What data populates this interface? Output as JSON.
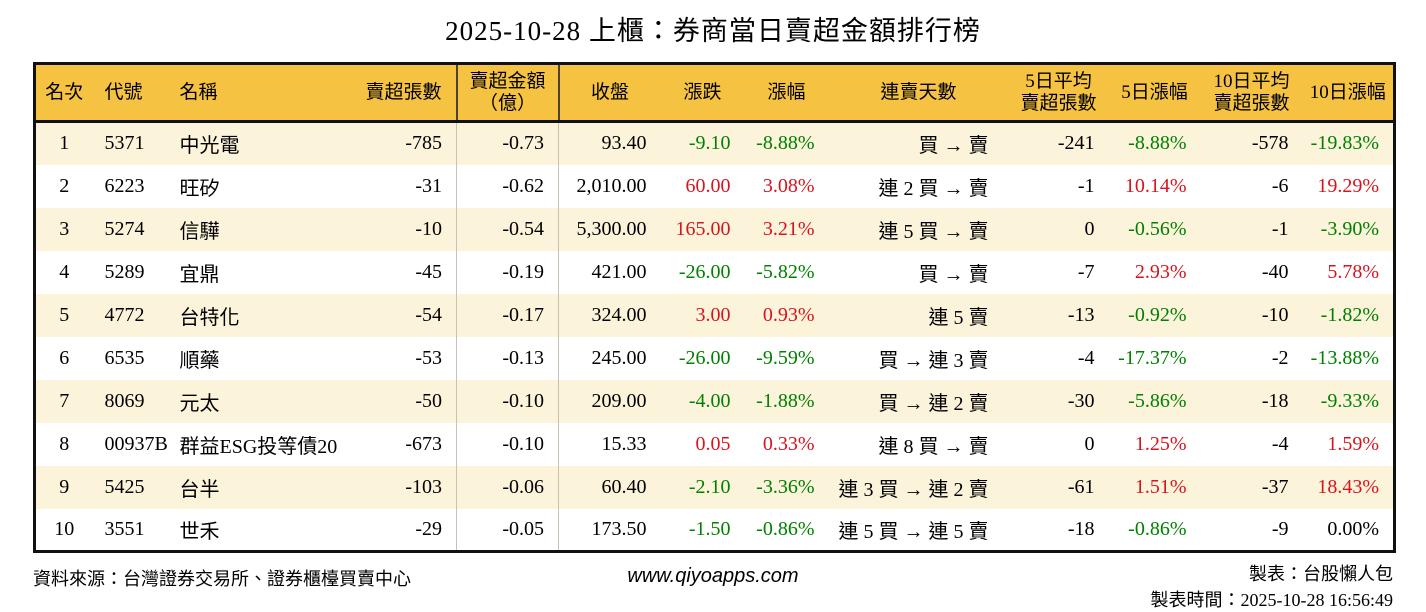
{
  "title": "2025-10-28 上櫃：券商當日賣超金額排行榜",
  "chart_data": {
    "type": "table",
    "title": "2025-10-28 上櫃：券商當日賣超金額排行榜",
    "columns": [
      "名次",
      "代號",
      "名稱",
      "賣超張數",
      "賣超金額\n（億）",
      "收盤",
      "漲跌",
      "漲幅",
      "連賣天數",
      "5日平均\n賣超張數",
      "5日漲幅",
      "10日平均\n賣超張數",
      "10日漲幅"
    ],
    "rows": [
      [
        "1",
        "5371",
        "中光電",
        "-785",
        "-0.73",
        "93.40",
        "-9.10",
        "-8.88%",
        "買 → 賣",
        "-241",
        "-8.88%",
        "-578",
        "-19.83%"
      ],
      [
        "2",
        "6223",
        "旺矽",
        "-31",
        "-0.62",
        "2,010.00",
        "60.00",
        "3.08%",
        "連 2 買 → 賣",
        "-1",
        "10.14%",
        "-6",
        "19.29%"
      ],
      [
        "3",
        "5274",
        "信驊",
        "-10",
        "-0.54",
        "5,300.00",
        "165.00",
        "3.21%",
        "連 5 買 → 賣",
        "0",
        "-0.56%",
        "-1",
        "-3.90%"
      ],
      [
        "4",
        "5289",
        "宜鼎",
        "-45",
        "-0.19",
        "421.00",
        "-26.00",
        "-5.82%",
        "買 → 賣",
        "-7",
        "2.93%",
        "-40",
        "5.78%"
      ],
      [
        "5",
        "4772",
        "台特化",
        "-54",
        "-0.17",
        "324.00",
        "3.00",
        "0.93%",
        "連 5 賣",
        "-13",
        "-0.92%",
        "-10",
        "-1.82%"
      ],
      [
        "6",
        "6535",
        "順藥",
        "-53",
        "-0.13",
        "245.00",
        "-26.00",
        "-9.59%",
        "買 → 連 3 賣",
        "-4",
        "-17.37%",
        "-2",
        "-13.88%"
      ],
      [
        "7",
        "8069",
        "元太",
        "-50",
        "-0.10",
        "209.00",
        "-4.00",
        "-1.88%",
        "買 → 連 2 賣",
        "-30",
        "-5.86%",
        "-18",
        "-9.33%"
      ],
      [
        "8",
        "00937B",
        "群益ESG投等債20",
        "-673",
        "-0.10",
        "15.33",
        "0.05",
        "0.33%",
        "連 8 買 → 賣",
        "0",
        "1.25%",
        "-4",
        "1.59%"
      ],
      [
        "9",
        "5425",
        "台半",
        "-103",
        "-0.06",
        "60.40",
        "-2.10",
        "-3.36%",
        "連 3 買 → 連 2 賣",
        "-61",
        "1.51%",
        "-37",
        "18.43%"
      ],
      [
        "10",
        "3551",
        "世禾",
        "-29",
        "-0.05",
        "173.50",
        "-1.50",
        "-0.86%",
        "連 5 買 → 連 5 賣",
        "-18",
        "-0.86%",
        "-9",
        "0.00%"
      ]
    ],
    "color_columns": [
      6,
      7,
      10,
      12
    ],
    "row_colors": [
      [
        "down",
        "down",
        "down",
        "down"
      ],
      [
        "up",
        "up",
        "up",
        "up"
      ],
      [
        "up",
        "up",
        "down",
        "down"
      ],
      [
        "down",
        "down",
        "up",
        "up"
      ],
      [
        "up",
        "up",
        "down",
        "down"
      ],
      [
        "down",
        "down",
        "down",
        "down"
      ],
      [
        "down",
        "down",
        "down",
        "down"
      ],
      [
        "up",
        "up",
        "up",
        "up"
      ],
      [
        "down",
        "down",
        "up",
        "up"
      ],
      [
        "down",
        "down",
        "down",
        "flat"
      ]
    ],
    "legend_note": "red = 上漲, green = 下跌, black = 平盤",
    "grid": "horizontal stripes, dividers around 賣超金額 column"
  },
  "palette": {
    "up_red": "#d7141e",
    "down_green": "#008000",
    "flat_black": "#000000",
    "header_bg": "#f5c242",
    "row_stripe_bg": "#fcf3db",
    "table_border": "#111111",
    "column_divider": "#c9c2b4"
  },
  "footer": {
    "source": "資料來源：台灣證券交易所、證券櫃檯買賣中心",
    "website": "www.qiyoapps.com",
    "maker": "製表：台股懶人包",
    "generated_at": "製表時間：2025-10-28 16:56:49"
  }
}
